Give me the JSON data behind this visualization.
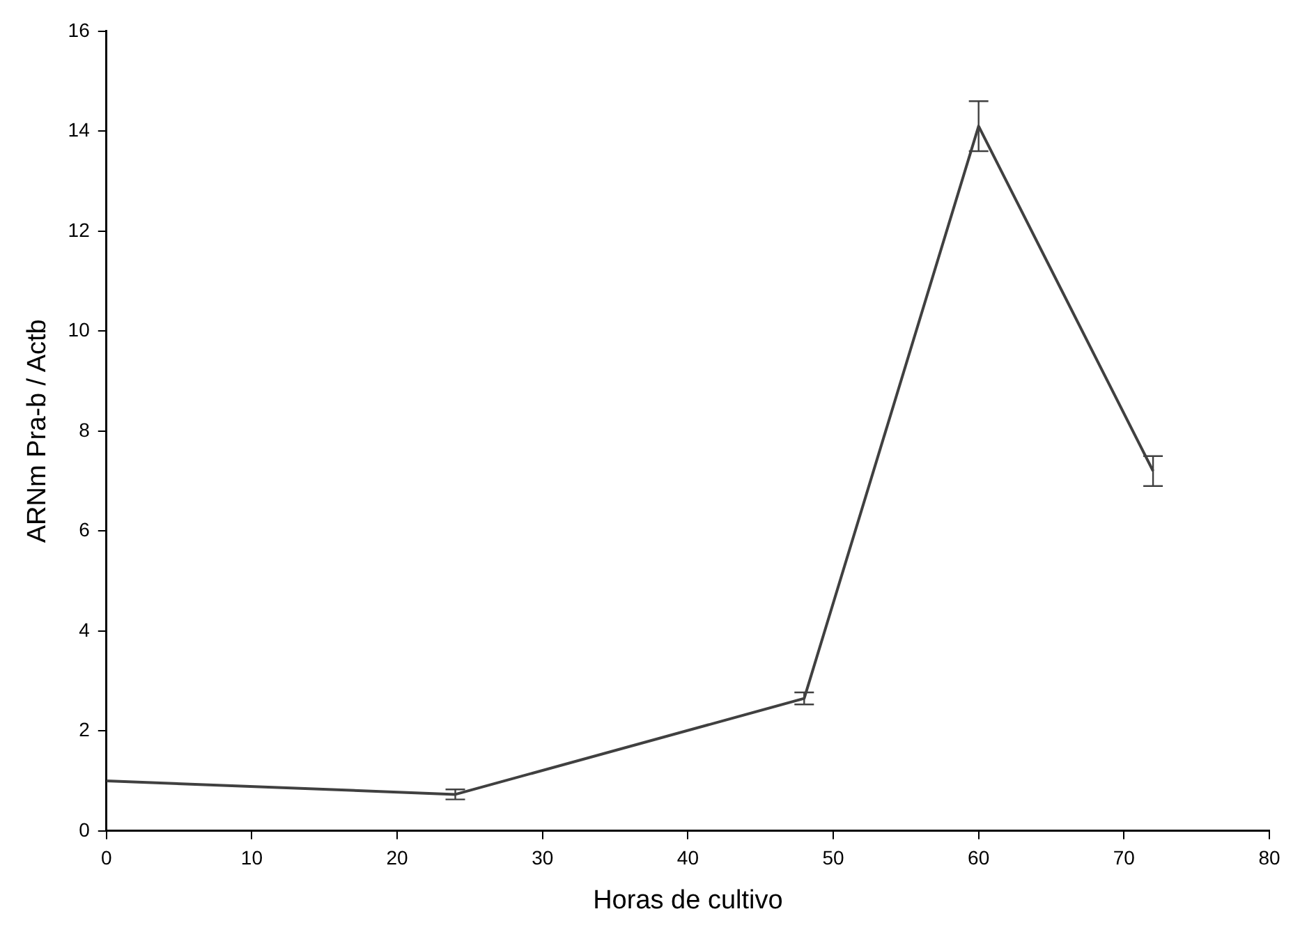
{
  "chart_data": {
    "type": "line",
    "xlabel": "Horas de cultivo",
    "ylabel": "ARNm Pra-b / Actb",
    "x": [
      0,
      24,
      48,
      60,
      72
    ],
    "series": [
      {
        "color": "#404040",
        "values": [
          1.0,
          0.73,
          2.65,
          14.1,
          7.2
        ],
        "errors": [
          null,
          0.1,
          0.12,
          0.5,
          0.3
        ]
      }
    ],
    "xlim": [
      0,
      80
    ],
    "xticks": [
      0,
      10,
      20,
      30,
      40,
      50,
      60,
      70,
      80
    ],
    "ylim": [
      0,
      16
    ],
    "yticks": [
      0,
      2,
      4,
      6,
      8,
      10,
      12,
      14,
      16
    ],
    "grid": false,
    "legend": false,
    "marker": "none",
    "line_style": "solid"
  }
}
